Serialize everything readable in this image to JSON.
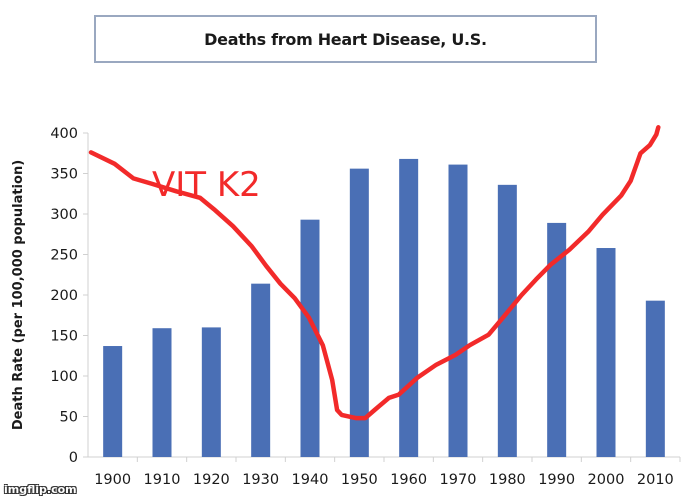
{
  "chart_data": {
    "type": "bar",
    "title": "Deaths from Heart Disease, U.S.",
    "xlabel": "",
    "ylabel": "Death Rate (per 100,000 population)",
    "ylim": [
      0,
      400
    ],
    "yticks": [
      0,
      50,
      100,
      150,
      200,
      250,
      300,
      350,
      400
    ],
    "grid": false,
    "categories": [
      "1900",
      "1910",
      "1920",
      "1930",
      "1940",
      "1950",
      "1960",
      "1970",
      "1980",
      "1990",
      "2000",
      "2010"
    ],
    "values": [
      137,
      159,
      160,
      214,
      293,
      356,
      368,
      361,
      336,
      289,
      258,
      193
    ],
    "bar_color": "#4a6fb5",
    "overlay_line": {
      "name": "VIT K2",
      "color": "#f22a2a",
      "hand_drawn": true,
      "points": [
        [
          1895.6,
          376
        ],
        [
          1900.4,
          362
        ],
        [
          1904.2,
          344
        ],
        [
          1908.1,
          337
        ],
        [
          1912.9,
          328
        ],
        [
          1917.7,
          320
        ],
        [
          1920.5,
          306
        ],
        [
          1924.4,
          285
        ],
        [
          1928.2,
          260
        ],
        [
          1931.1,
          236
        ],
        [
          1934.0,
          214
        ],
        [
          1936.9,
          196
        ],
        [
          1939.8,
          172
        ],
        [
          1942.6,
          138
        ],
        [
          1944.5,
          95
        ],
        [
          1945.5,
          58
        ],
        [
          1946.4,
          52
        ],
        [
          1949.3,
          48
        ],
        [
          1951.2,
          48
        ],
        [
          1953.1,
          58
        ],
        [
          1956.0,
          73
        ],
        [
          1958.0,
          77
        ],
        [
          1961.8,
          98
        ],
        [
          1965.6,
          114
        ],
        [
          1969.5,
          126
        ],
        [
          1972.4,
          138
        ],
        [
          1976.2,
          151
        ],
        [
          1979.1,
          172
        ],
        [
          1982.9,
          200
        ],
        [
          1985.8,
          219
        ],
        [
          1988.7,
          237
        ],
        [
          1992.6,
          256
        ],
        [
          1996.4,
          278
        ],
        [
          1999.3,
          299
        ],
        [
          2003.1,
          323
        ],
        [
          2005.0,
          341
        ],
        [
          2007.0,
          375
        ],
        [
          2008.9,
          385
        ],
        [
          2010.2,
          398
        ],
        [
          2010.6,
          407
        ]
      ]
    },
    "annotations": [
      {
        "text": "VIT K2",
        "color": "#f22a2a",
        "near": "top-left, beside line"
      }
    ]
  },
  "watermark": "imgflip.com"
}
